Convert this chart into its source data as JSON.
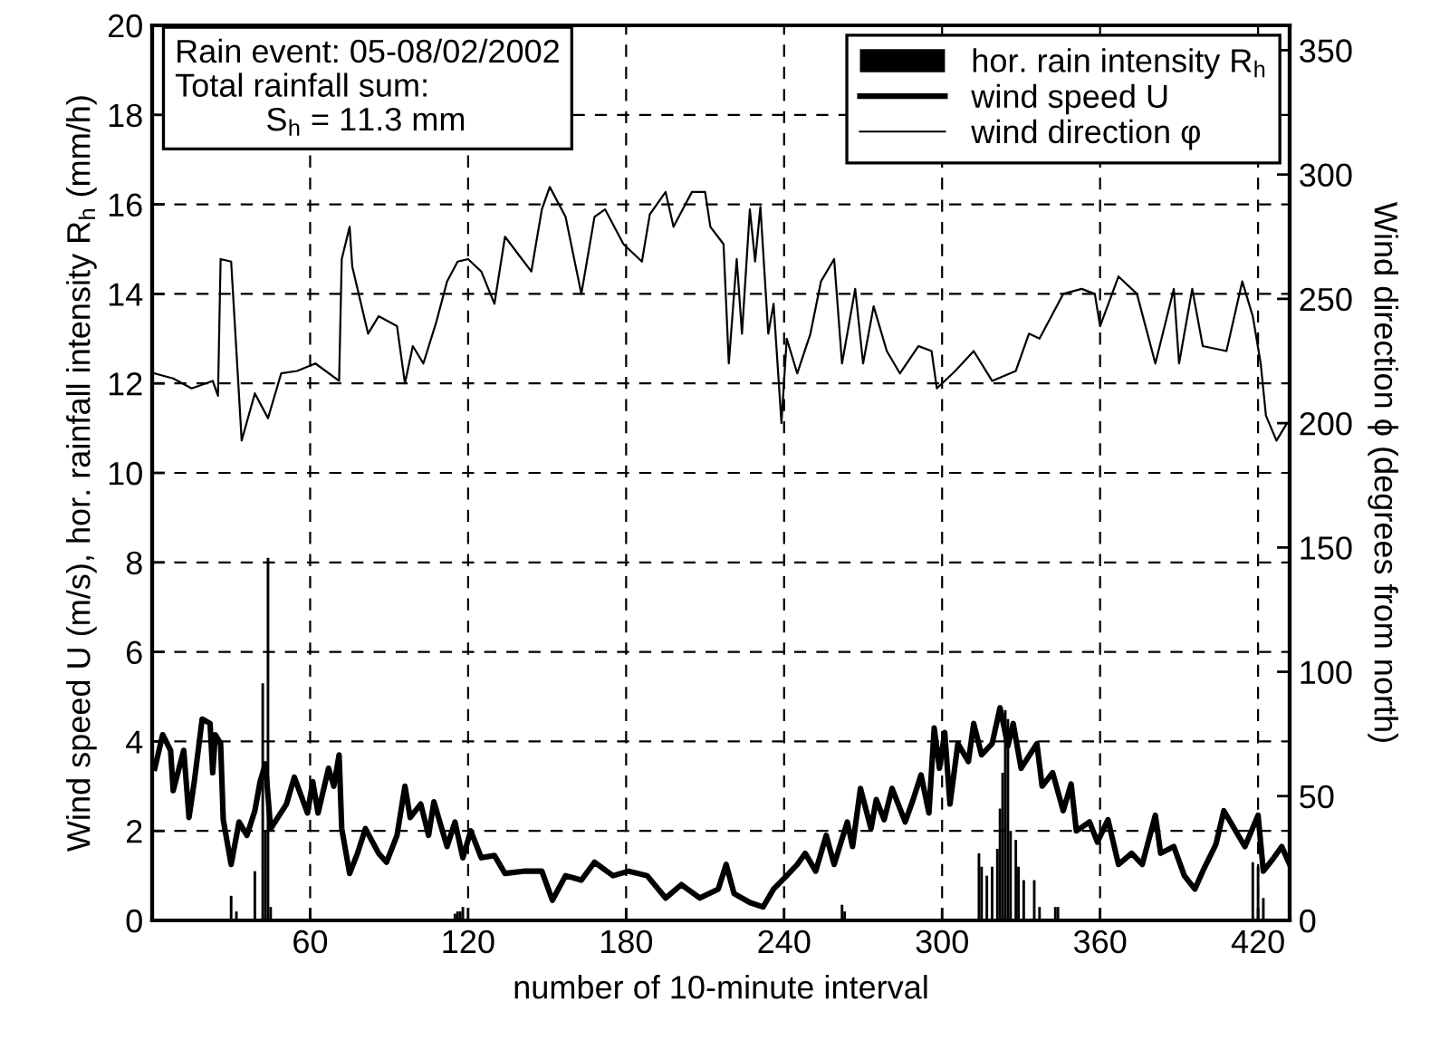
{
  "chart_data": {
    "type": "line",
    "xlabel": "number of 10-minute interval",
    "ylabel": "Wind speed U (m/s), hor. rainfall intensity R$_{h}$ (mm/h)",
    "y2label": "Wind direction ϕ (degrees from north)",
    "annotations": [
      "Rain event: 05-08/02/2002\nTotal rainfall sum:\n          S$_{h}$ = 11.3 mm"
    ],
    "xlim": [
      0,
      432
    ],
    "xticks": [
      60,
      120,
      180,
      240,
      300,
      360,
      420
    ],
    "ylim": [
      0,
      20
    ],
    "yticks": [
      0,
      2,
      4,
      6,
      8,
      10,
      12,
      14,
      16,
      18,
      20
    ],
    "y2lim": [
      0,
      360
    ],
    "y2ticks": [
      0,
      50,
      100,
      150,
      200,
      250,
      300,
      350
    ],
    "grid": true,
    "legend": "top right",
    "series": [
      {
        "name": "hor. rain intensity R$_{h}$",
        "type": "bar",
        "color": "#000000",
        "x": [
          30,
          32,
          39,
          42,
          43,
          44,
          45,
          115,
          116,
          117,
          118,
          262,
          263,
          314,
          315,
          317,
          319,
          321,
          322,
          323,
          324,
          325,
          326,
          328,
          329,
          331,
          335,
          337,
          343,
          344,
          418,
          420,
          422
        ],
        "values": [
          0.55,
          0.2,
          1.1,
          5.3,
          2.0,
          8.1,
          0.3,
          0.15,
          0.2,
          0.2,
          0.3,
          0.35,
          0.2,
          1.5,
          1.2,
          1.0,
          1.2,
          1.6,
          2.5,
          3.3,
          4.7,
          4.5,
          2.0,
          1.8,
          1.2,
          0.9,
          0.9,
          0.3,
          0.3,
          0.3,
          1.3,
          1.2,
          0.5
        ]
      },
      {
        "name": "wind speed U",
        "color": "#000000",
        "x": [
          1,
          4,
          7,
          8,
          12,
          14,
          16,
          19,
          22,
          23,
          24,
          26,
          27,
          30,
          33,
          36,
          39,
          41,
          43,
          45,
          51,
          54,
          59,
          61,
          63,
          67,
          69,
          71,
          72,
          75,
          78,
          81,
          86,
          89,
          93,
          96,
          98,
          102,
          105,
          107,
          112,
          115,
          118,
          121,
          125,
          130,
          134,
          141,
          148,
          152,
          157,
          163,
          168,
          175,
          181,
          188,
          195,
          201,
          208,
          215,
          218,
          221,
          227,
          232,
          236,
          241,
          245,
          248,
          252,
          256,
          259,
          264,
          266,
          269,
          273,
          275,
          278,
          281,
          286,
          289,
          292,
          295,
          297,
          299,
          301,
          303,
          306,
          310,
          312,
          315,
          319,
          322,
          325,
          327,
          330,
          336,
          338,
          342,
          346,
          349,
          351,
          356,
          359,
          363,
          367,
          372,
          376,
          381,
          383,
          388,
          392,
          396,
          399,
          404,
          407,
          411,
          415,
          420,
          422,
          426,
          429,
          432
        ],
        "values": [
          3.4,
          4.15,
          3.8,
          2.9,
          3.8,
          2.3,
          3.1,
          4.5,
          4.4,
          3.3,
          4.15,
          3.95,
          2.25,
          1.25,
          2.2,
          1.9,
          2.45,
          3.1,
          3.5,
          2.05,
          2.6,
          3.2,
          2.4,
          3.1,
          2.4,
          3.4,
          3.0,
          3.7,
          2.05,
          1.05,
          1.5,
          2.05,
          1.5,
          1.3,
          1.9,
          3.0,
          2.3,
          2.6,
          1.9,
          2.65,
          1.65,
          2.2,
          1.4,
          2.0,
          1.4,
          1.45,
          1.05,
          1.1,
          1.1,
          0.45,
          1.0,
          0.9,
          1.3,
          1.0,
          1.1,
          1.0,
          0.5,
          0.8,
          0.5,
          0.7,
          1.25,
          0.6,
          0.4,
          0.3,
          0.7,
          1.0,
          1.25,
          1.5,
          1.1,
          1.9,
          1.25,
          2.2,
          1.65,
          2.95,
          2.05,
          2.7,
          2.25,
          2.95,
          2.2,
          2.7,
          3.25,
          2.4,
          4.3,
          3.4,
          4.2,
          2.6,
          3.95,
          3.55,
          4.4,
          3.7,
          3.95,
          4.75,
          3.9,
          4.4,
          3.4,
          3.95,
          3.0,
          3.3,
          2.45,
          3.05,
          2.0,
          2.2,
          1.75,
          2.25,
          1.25,
          1.5,
          1.25,
          2.35,
          1.5,
          1.65,
          1.0,
          0.7,
          1.1,
          1.7,
          2.45,
          2.05,
          1.65,
          2.35,
          1.1,
          1.4,
          1.65,
          1.25
        ]
      },
      {
        "name": "wind direction φ",
        "axis": "y2",
        "color": "#000000",
        "x": [
          1,
          8,
          15,
          23,
          25,
          26,
          30,
          34,
          39,
          44,
          49,
          55,
          62,
          71,
          72,
          75,
          76,
          82,
          86,
          93,
          96,
          99,
          103,
          108,
          112,
          116,
          120,
          125,
          130,
          134,
          139,
          144,
          148,
          151,
          157,
          163,
          168,
          172,
          179,
          186,
          189,
          195,
          198,
          205,
          210,
          212,
          217,
          219,
          222,
          224,
          227,
          229,
          231,
          234,
          236,
          239,
          241,
          245,
          250,
          254,
          259,
          262,
          267,
          270,
          274,
          279,
          284,
          291,
          296,
          298,
          305,
          312,
          319,
          328,
          333,
          337,
          346,
          353,
          358,
          360,
          367,
          374,
          381,
          388,
          390,
          395,
          399,
          408,
          414,
          418,
          421,
          423,
          427,
          431
        ],
        "values": [
          220,
          218,
          214,
          217,
          211,
          266,
          265,
          193,
          212,
          202,
          220,
          221,
          224,
          217,
          266,
          279,
          263,
          236,
          243,
          239,
          216,
          231,
          224,
          241,
          257,
          265,
          266,
          261,
          248,
          275,
          268,
          261,
          286,
          295,
          283,
          252,
          283,
          286,
          272,
          265,
          284,
          293,
          279,
          293,
          293,
          279,
          272,
          224,
          266,
          236,
          286,
          265,
          287,
          236,
          248,
          200,
          234,
          220,
          236,
          257,
          266,
          224,
          254,
          224,
          247,
          229,
          220,
          231,
          229,
          214,
          221,
          229,
          217,
          221,
          236,
          234,
          252,
          254,
          252,
          239,
          259,
          252,
          224,
          254,
          224,
          254,
          231,
          229,
          257,
          243,
          224,
          203,
          193,
          200
        ]
      }
    ]
  }
}
